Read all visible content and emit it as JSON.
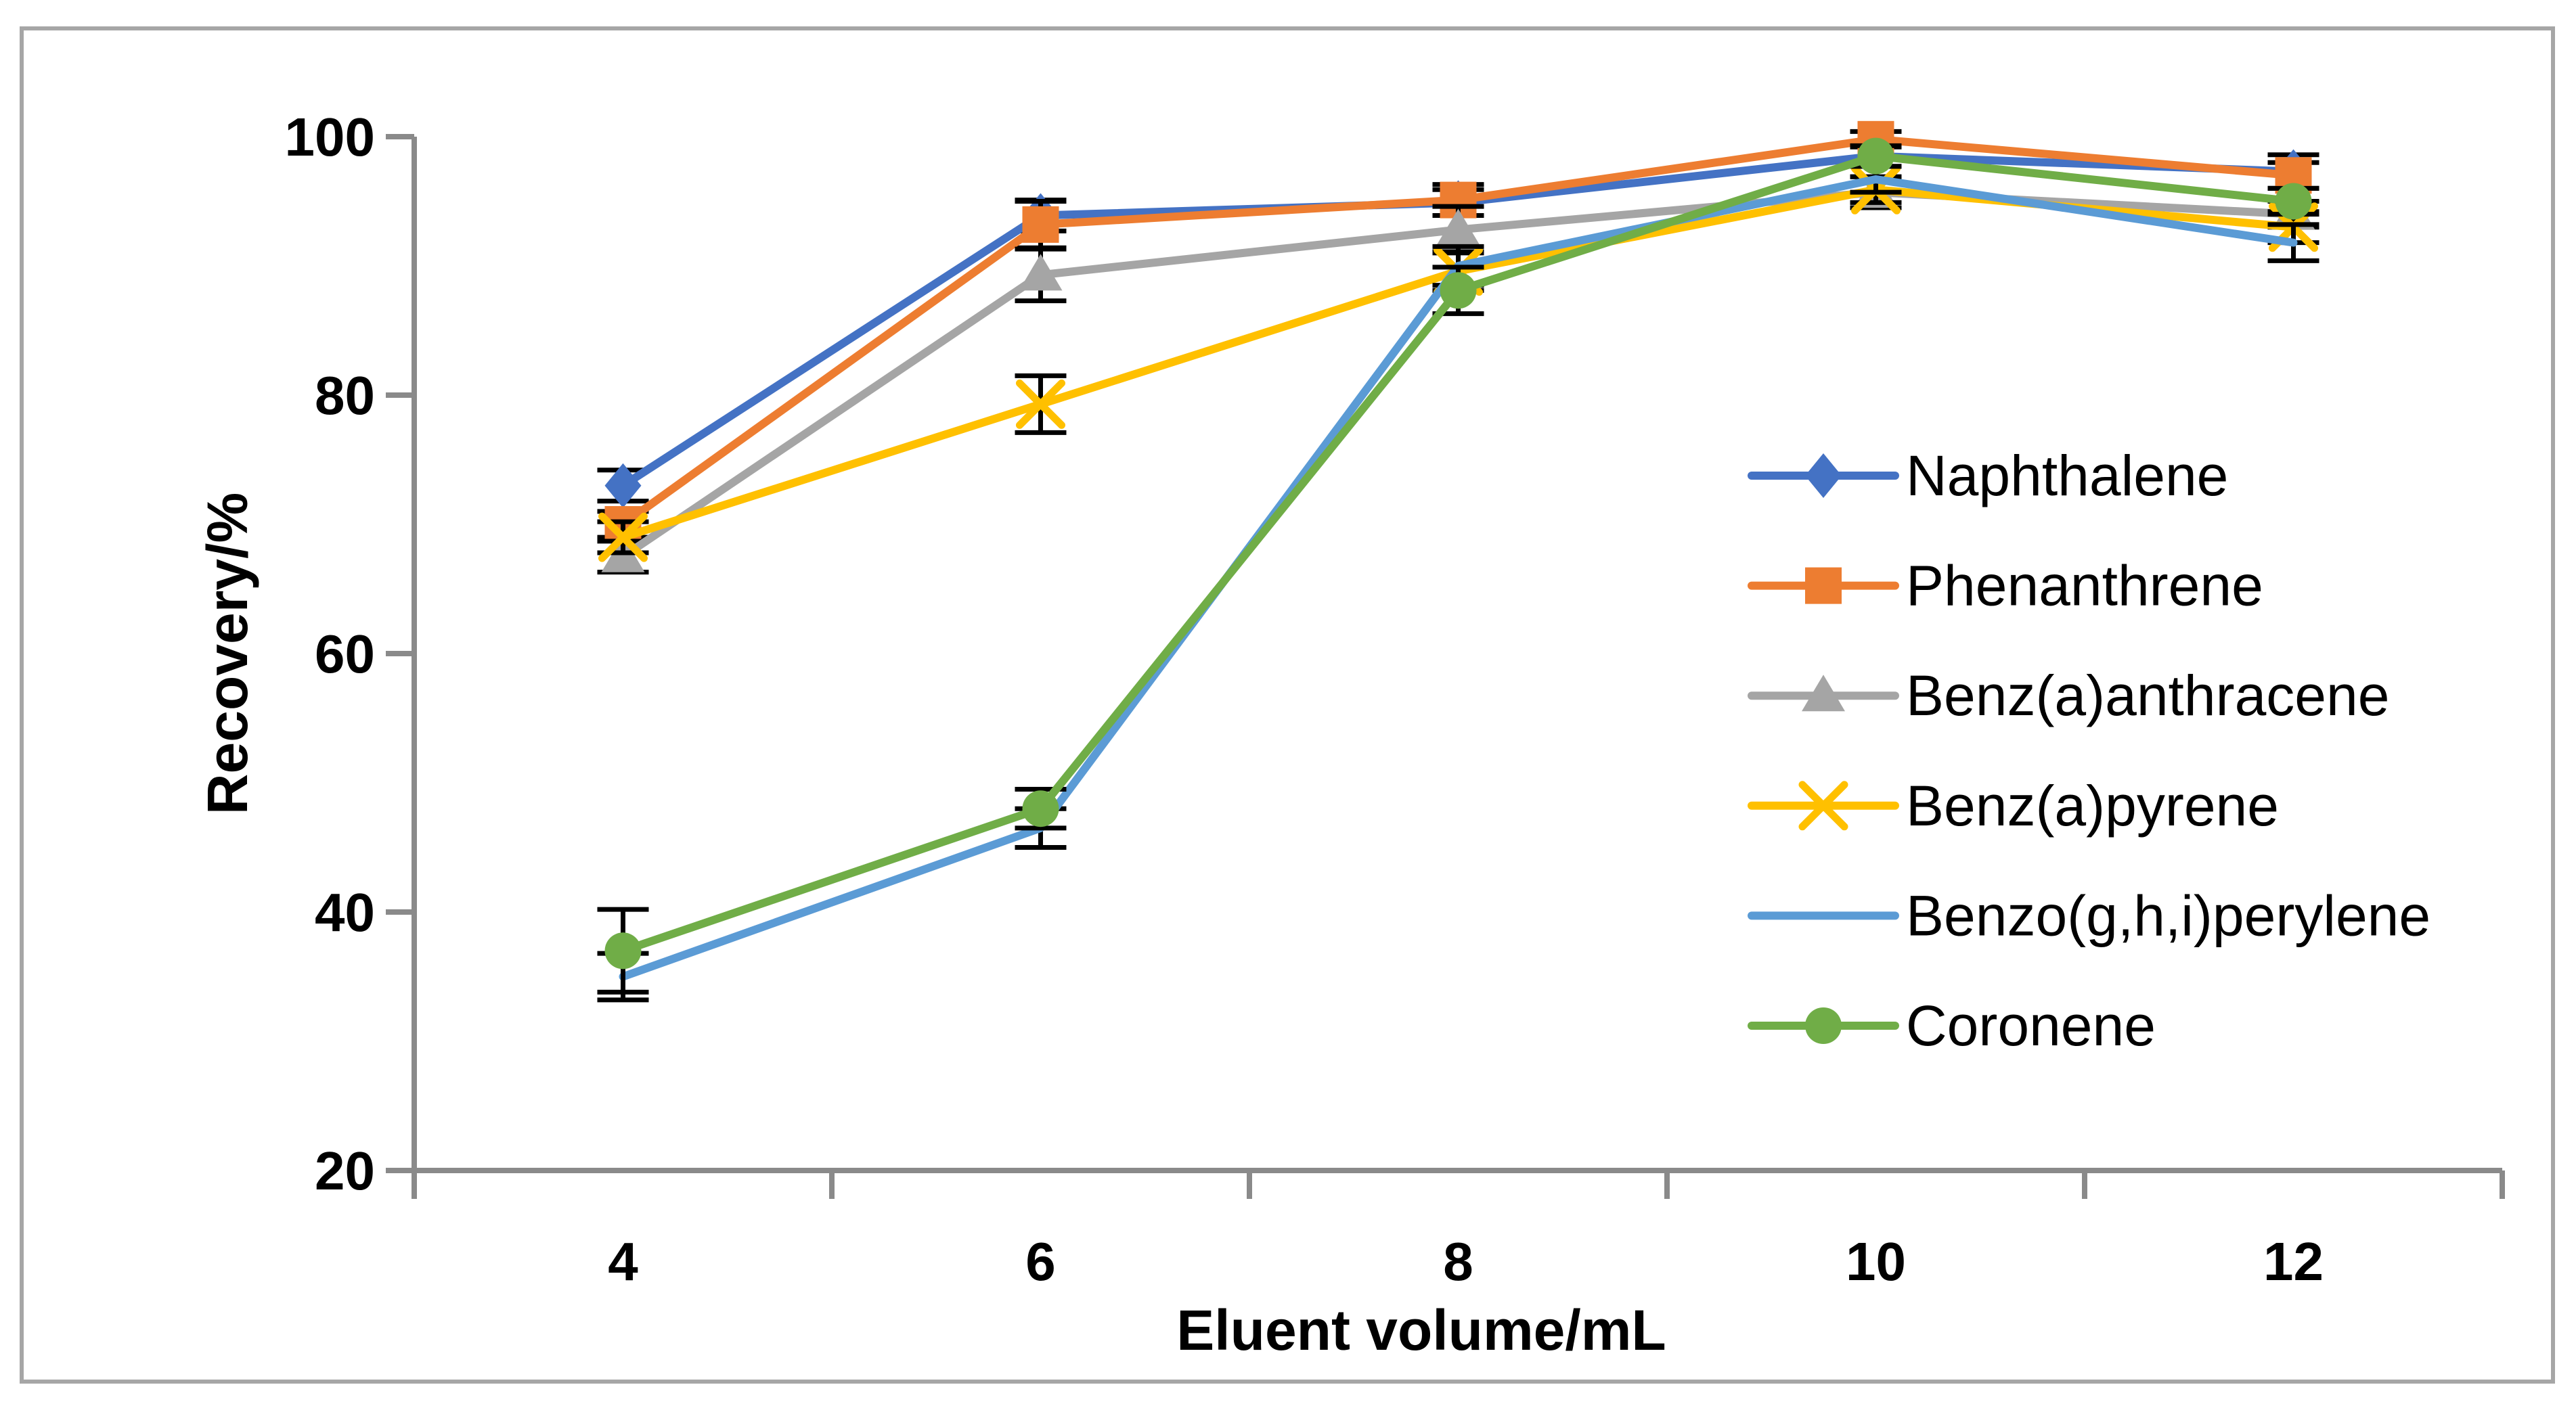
{
  "figure": {
    "background": "#FFFFFF",
    "border_color": "#A6A6A6",
    "axis_color": "#8A8A8A",
    "error_bar_color": "#000000"
  },
  "chart_data": {
    "type": "line",
    "title": "",
    "xlabel": "Eluent volume/mL",
    "ylabel": "Recovery/%",
    "x": [
      4,
      6,
      8,
      10,
      12
    ],
    "ylim": [
      20,
      100
    ],
    "yticks": [
      20,
      40,
      60,
      80,
      100
    ],
    "grid": false,
    "legend_position": "right-center",
    "series": [
      {
        "name": "Naphthalene",
        "color": "#4472C4",
        "marker": "diamond",
        "values": [
          73.0,
          93.9,
          94.9,
          98.5,
          97.3
        ],
        "errors": [
          1.2,
          1.2,
          1.0,
          0.8,
          1.3
        ]
      },
      {
        "name": "Phenanthrene",
        "color": "#ED7D31",
        "marker": "square",
        "values": [
          70.0,
          93.2,
          95.1,
          99.8,
          97.0
        ],
        "errors": [
          1.0,
          1.8,
          1.2,
          0.6,
          1.0
        ]
      },
      {
        "name": "Benz(a)anthracene",
        "color": "#A5A5A5",
        "marker": "triangle",
        "values": [
          67.5,
          89.3,
          92.8,
          95.7,
          94.0
        ],
        "errors": [
          1.2,
          2.0,
          1.8,
          1.2,
          1.0
        ]
      },
      {
        "name": "Benz(a)pyrene",
        "color": "#FFC000",
        "marker": "x",
        "values": [
          69.0,
          79.3,
          89.6,
          95.9,
          93.0
        ],
        "errors": [
          1.2,
          2.2,
          1.5,
          1.0,
          1.2
        ]
      },
      {
        "name": "Benzo(g,h,i)perylene",
        "color": "#5B9BD5",
        "marker": "none",
        "values": [
          35.0,
          46.5,
          90.0,
          96.7,
          91.8
        ],
        "errors": [
          1.8,
          1.5,
          1.5,
          1.0,
          1.4
        ]
      },
      {
        "name": "Coronene",
        "color": "#70AD47",
        "marker": "circle",
        "values": [
          37.0,
          48.0,
          88.1,
          98.5,
          95.0
        ],
        "errors": [
          3.2,
          1.5,
          1.8,
          0.8,
          1.0
        ]
      }
    ]
  }
}
